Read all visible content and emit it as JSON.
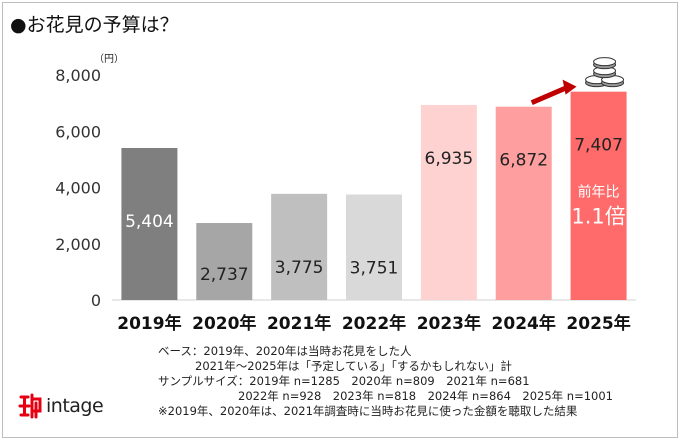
{
  "title": "●お花見の予算は？",
  "unit_label": "（円）",
  "chart_data": {
    "type": "bar",
    "title": "●お花見の予算は？",
    "ylabel": "（円）",
    "xlabel": "",
    "categories": [
      "2019年",
      "2020年",
      "2021年",
      "2022年",
      "2023年",
      "2024年",
      "2025年"
    ],
    "values": [
      5404,
      2737,
      3775,
      3751,
      6935,
      6872,
      7407
    ],
    "value_labels": [
      "5,404",
      "2,737",
      "3,775",
      "3,751",
      "6,935",
      "6,872",
      "7,407"
    ],
    "ylim": [
      0,
      8000
    ],
    "yticks": [
      0,
      2000,
      4000,
      6000,
      8000
    ],
    "ytick_labels": [
      "0",
      "2,000",
      "4,000",
      "6,000",
      "8,000"
    ],
    "grid": false,
    "bar_colors": [
      "#7f7f7f",
      "#a6a6a6",
      "#bfbfbf",
      "#d9d9d9",
      "#ffd2d2",
      "#ff9e9e",
      "#ff6b6b"
    ],
    "annotation": {
      "line1": "前年比",
      "line2": "1.1倍"
    },
    "arrow_color": "#c00000"
  },
  "notes": {
    "base_line1": "ベース：2019年、2020年は当時お花見をした人",
    "base_line2": "2021年～2025年は「予定している」「するかもしれない」計",
    "sample_line1": "サンプルサイズ：2019年 n=1285　2020年 n=809　2021年 n=681",
    "sample_line2": "2022年 n=928　2023年 n=818　2024年 n=864　2025年 n=1001",
    "footnote": "※2019年、2020年は、2021年調査時に当時お花見に使った金額を聴取した結果"
  },
  "logo": {
    "text": "intage",
    "color": "#e60012"
  }
}
